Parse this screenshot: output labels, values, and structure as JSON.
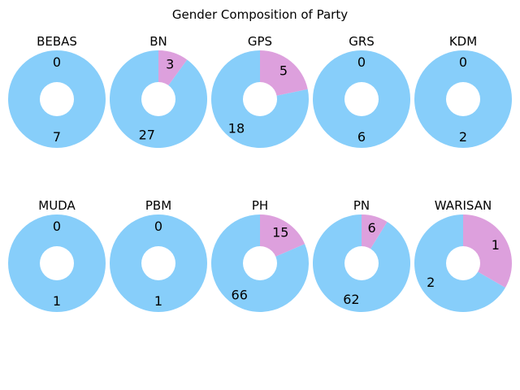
{
  "title": "Gender Composition of Party",
  "colors": {
    "male": "#87CEFA",
    "female": "#DDA0DD",
    "hole": "#FFFFFF"
  },
  "chart_data": {
    "type": "pie",
    "title": "Gender Composition of Party",
    "style": "donut",
    "slice_order": [
      "Male",
      "Female"
    ],
    "panels": [
      {
        "party": "BEBAS",
        "values": [
          7,
          0
        ]
      },
      {
        "party": "BN",
        "values": [
          27,
          3
        ]
      },
      {
        "party": "GPS",
        "values": [
          18,
          5
        ]
      },
      {
        "party": "GRS",
        "values": [
          6,
          0
        ]
      },
      {
        "party": "KDM",
        "values": [
          2,
          0
        ]
      },
      {
        "party": "MUDA",
        "values": [
          1,
          0
        ]
      },
      {
        "party": "PBM",
        "values": [
          1,
          0
        ]
      },
      {
        "party": "PH",
        "values": [
          66,
          15
        ]
      },
      {
        "party": "PN",
        "values": [
          62,
          6
        ]
      },
      {
        "party": "WARISAN",
        "values": [
          2,
          1
        ]
      }
    ]
  }
}
